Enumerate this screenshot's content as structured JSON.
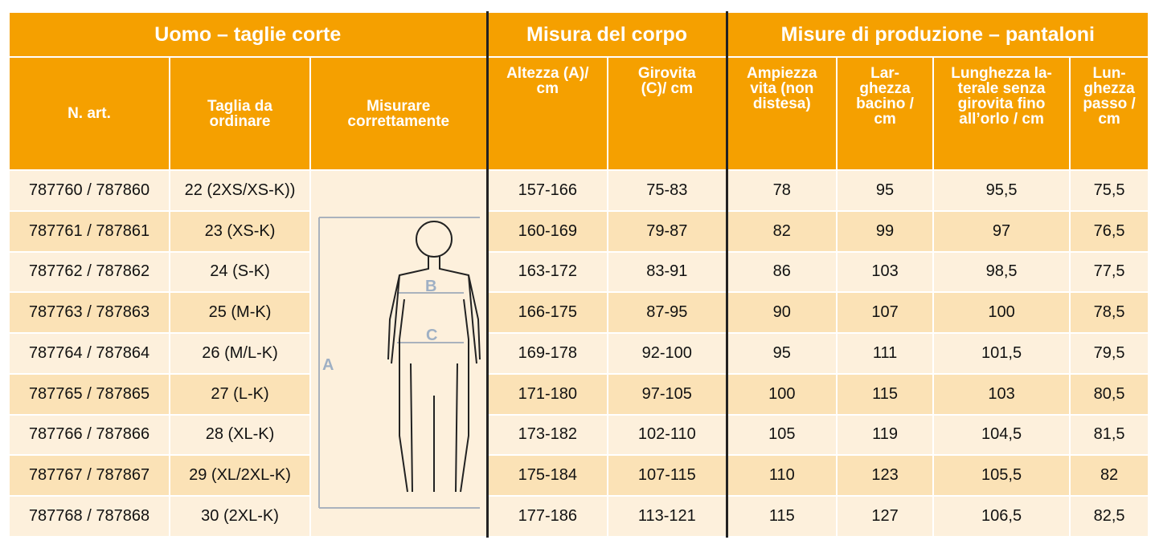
{
  "table": {
    "group_headers": [
      "Uomo – taglie corte",
      "Misura del corpo",
      "Misure di produzione – pantaloni"
    ],
    "column_headers": [
      "N. art.",
      "Taglia da\nordinare",
      "Misurare\ncorrettamente",
      "Altezza (A)/\ncm",
      "Girovita\n(C)/ cm",
      "Ampiezza\nvita (non\ndistesa)",
      "Lar-\nghezza\nbacino /\ncm",
      "Lunghezza la-\nterale senza\ngirovita fino\nall’orlo / cm",
      "Lun-\nghezza\npasso /\ncm"
    ],
    "figure_labels": [
      "A",
      "B",
      "C"
    ],
    "rows": [
      [
        "787760 / 787860",
        "22 (2XS/XS-K))",
        "157-166",
        "75-83",
        "78",
        "95",
        "95,5",
        "75,5"
      ],
      [
        "787761 / 787861",
        "23 (XS-K)",
        "160-169",
        "79-87",
        "82",
        "99",
        "97",
        "76,5"
      ],
      [
        "787762 / 787862",
        "24 (S-K)",
        "163-172",
        "83-91",
        "86",
        "103",
        "98,5",
        "77,5"
      ],
      [
        "787763 / 787863",
        "25 (M-K)",
        "166-175",
        "87-95",
        "90",
        "107",
        "100",
        "78,5"
      ],
      [
        "787764 / 787864",
        "26 (M/L-K)",
        "169-178",
        "92-100",
        "95",
        "111",
        "101,5",
        "79,5"
      ],
      [
        "787765 / 787865",
        "27 (L-K)",
        "171-180",
        "97-105",
        "100",
        "115",
        "103",
        "80,5"
      ],
      [
        "787766 / 787866",
        "28 (XL-K)",
        "173-182",
        "102-110",
        "105",
        "119",
        "104,5",
        "81,5"
      ],
      [
        "787767 / 787867",
        "29 (XL/2XL-K)",
        "175-184",
        "107-115",
        "110",
        "123",
        "105,5",
        "82"
      ],
      [
        "787768 / 787868",
        "30 (2XL-K)",
        "177-186",
        "113-121",
        "115",
        "127",
        "106,5",
        "82,5"
      ]
    ]
  }
}
